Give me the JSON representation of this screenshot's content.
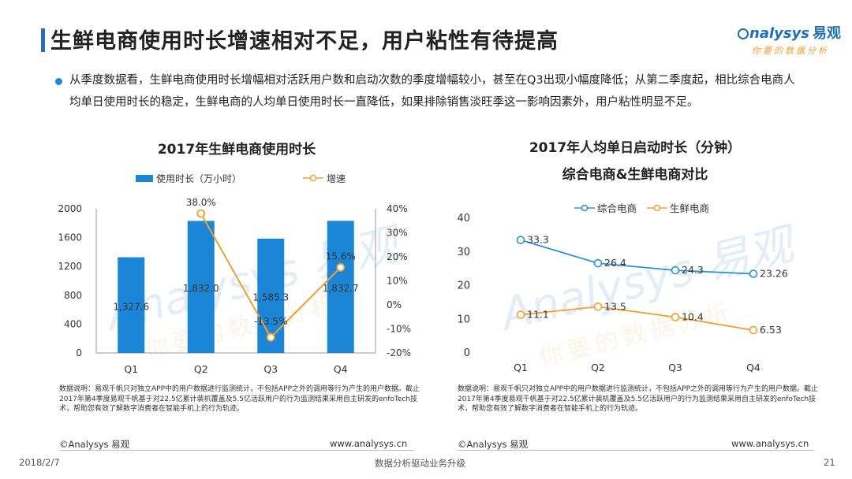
{
  "header": {
    "title": "生鲜电商使用时长增速相对不足，用户粘性有待提高",
    "logo_main": "nalysys",
    "logo_cn": "易观",
    "logo_tagline": "你要的数据分析"
  },
  "summary": {
    "text": "从季度数据看，生鲜电商使用时长增幅相对活跃用户数和启动次数的季度增幅较小，甚至在Q3出现小幅度降低；从第二季度起，相比综合电商人均单日使用时长的稳定，生鲜电商的人均单日使用时长一直降低，如果排除销售淡旺季这一影响因素外，用户粘性明显不足。"
  },
  "watermark": {
    "text_en": "Analysys",
    "text_cn": "易观",
    "tagline": "你要的数据分析"
  },
  "left_chart": {
    "note": "数据说明：易观千帆只对独立APP中的用户数据进行监测统计，不包括APP之外的调用等行为产生的用户数据。截止2017年第4季度易观千帆基于对22.5亿累计装机覆盖及5.5亿活跃用户的行为监测结果采用自主研发的enfoTech技术，帮助您有效了解数字消费者在智能手机上的行为轨迹。",
    "copyright": "©Analysys 易观",
    "url": "www.analysys.cn"
  },
  "right_chart": {
    "note": "数据说明：易观千帆只对独立APP中的用户数据进行监测统计，不包括APP之外的调用等行为产生的用户数据。截止2017年第4季度易观千帆基于对22.5亿累计装机覆盖及5.5亿活跃用户的行为监测结果采用自主研发的enfoTech技术，帮助您有效了解数字消费者在智能手机上的行为轨迹。",
    "copyright": "©Analysys 易观",
    "url": "www.analysys.cn"
  },
  "footer": {
    "date": "2018/2/7",
    "slogan": "数据分析驱动业务升级",
    "page": "21"
  },
  "colors": {
    "bar": "#1b86d6",
    "orange": "#f0a030",
    "blue_line": "#2a94d6",
    "title_bar": "#2a6fb8"
  },
  "chart_data": [
    {
      "type": "bar+line",
      "title": "2017年生鲜电商使用时长",
      "categories": [
        "Q1",
        "Q2",
        "Q3",
        "Q4"
      ],
      "series": [
        {
          "name": "使用时长（万小时）",
          "type": "bar",
          "axis": "left",
          "values": [
            1327.6,
            1832.0,
            1585.3,
            1832.7
          ],
          "labels": [
            "1,327.6",
            "1,832.0",
            "1,585.3",
            "1,832.7"
          ]
        },
        {
          "name": "增速",
          "type": "line",
          "axis": "right",
          "values": [
            null,
            38.0,
            -13.5,
            15.6
          ],
          "labels": [
            "",
            "38.0%",
            "-13.5%",
            "15.6%"
          ]
        }
      ],
      "ylim_left": [
        0,
        2000
      ],
      "yticks_left": [
        0,
        400,
        800,
        1200,
        1600,
        2000
      ],
      "ylim_right": [
        -20,
        40
      ],
      "yticks_right": [
        "-20%",
        "-10%",
        "0%",
        "10%",
        "20%",
        "30%",
        "40%"
      ],
      "grid": false,
      "legend": "top"
    },
    {
      "type": "line",
      "title_line1": "2017年人均单日启动时长（分钟）",
      "title_line2": "综合电商&生鲜电商对比",
      "categories": [
        "Q1",
        "Q2",
        "Q3",
        "Q4"
      ],
      "series": [
        {
          "name": "综合电商",
          "values": [
            33.3,
            26.4,
            24.3,
            23.26
          ],
          "labels": [
            "33.3",
            "26.4",
            "24.3",
            "23.26"
          ]
        },
        {
          "name": "生鲜电商",
          "values": [
            11.1,
            13.5,
            10.4,
            6.53
          ],
          "labels": [
            "11.1",
            "13.5",
            "10.4",
            "6.53"
          ]
        }
      ],
      "ylim": [
        0,
        40
      ],
      "yticks": [
        0,
        10,
        20,
        30,
        40
      ],
      "grid": false,
      "legend": "top"
    }
  ]
}
